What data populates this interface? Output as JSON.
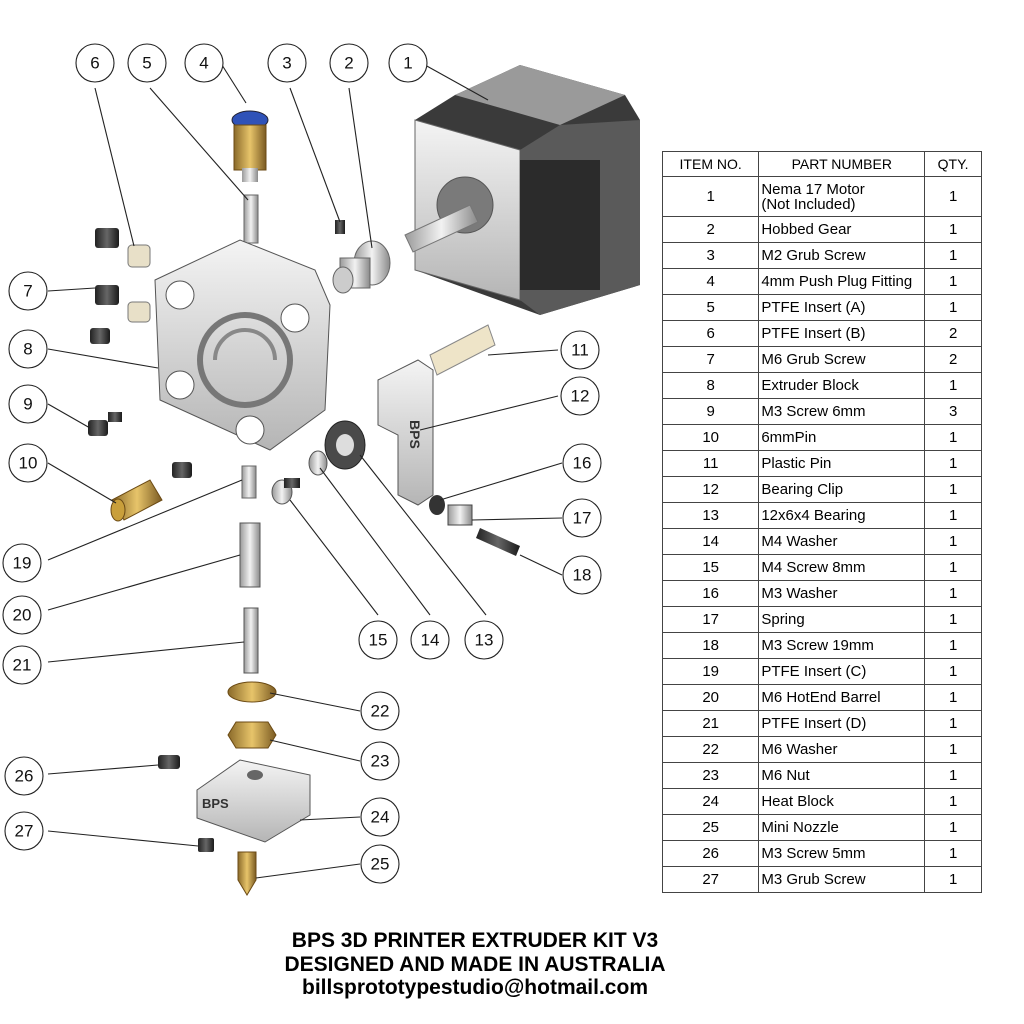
{
  "table": {
    "headers": [
      "ITEM NO.",
      "PART NUMBER",
      "QTY."
    ],
    "rows": [
      {
        "item": "1",
        "part": "Nema 17 Motor\n(Not Included)",
        "qty": "1"
      },
      {
        "item": "2",
        "part": "Hobbed Gear",
        "qty": "1"
      },
      {
        "item": "3",
        "part": "M2 Grub Screw",
        "qty": "1"
      },
      {
        "item": "4",
        "part": "4mm Push Plug Fitting",
        "qty": "1"
      },
      {
        "item": "5",
        "part": "PTFE Insert (A)",
        "qty": "1"
      },
      {
        "item": "6",
        "part": "PTFE Insert (B)",
        "qty": "2"
      },
      {
        "item": "7",
        "part": "M6 Grub Screw",
        "qty": "2"
      },
      {
        "item": "8",
        "part": "Extruder Block",
        "qty": "1"
      },
      {
        "item": "9",
        "part": "M3 Screw 6mm",
        "qty": "3"
      },
      {
        "item": "10",
        "part": "6mmPin",
        "qty": "1"
      },
      {
        "item": "11",
        "part": "Plastic Pin",
        "qty": "1"
      },
      {
        "item": "12",
        "part": "Bearing Clip",
        "qty": "1"
      },
      {
        "item": "13",
        "part": "12x6x4 Bearing",
        "qty": "1"
      },
      {
        "item": "14",
        "part": "M4 Washer",
        "qty": "1"
      },
      {
        "item": "15",
        "part": "M4 Screw 8mm",
        "qty": "1"
      },
      {
        "item": "16",
        "part": "M3 Washer",
        "qty": "1"
      },
      {
        "item": "17",
        "part": "Spring",
        "qty": "1"
      },
      {
        "item": "18",
        "part": "M3 Screw 19mm",
        "qty": "1"
      },
      {
        "item": "19",
        "part": "PTFE Insert (C)",
        "qty": "1"
      },
      {
        "item": "20",
        "part": "M6 HotEnd Barrel",
        "qty": "1"
      },
      {
        "item": "21",
        "part": "PTFE Insert (D)",
        "qty": "1"
      },
      {
        "item": "22",
        "part": "M6 Washer",
        "qty": "1"
      },
      {
        "item": "23",
        "part": "M6 Nut",
        "qty": "1"
      },
      {
        "item": "24",
        "part": "Heat Block",
        "qty": "1"
      },
      {
        "item": "25",
        "part": "Mini Nozzle",
        "qty": "1"
      },
      {
        "item": "26",
        "part": "M3 Screw 5mm",
        "qty": "1"
      },
      {
        "item": "27",
        "part": "M3 Grub Screw",
        "qty": "1"
      }
    ]
  },
  "callouts": [
    "1",
    "2",
    "3",
    "4",
    "5",
    "6",
    "7",
    "8",
    "9",
    "10",
    "11",
    "12",
    "13",
    "14",
    "15",
    "16",
    "17",
    "18",
    "19",
    "20",
    "21",
    "22",
    "23",
    "24",
    "25",
    "26",
    "27"
  ],
  "part_markings": {
    "bearing_clip": "BPS",
    "heat_block": "BPS"
  },
  "footer": {
    "line1": "BPS 3D PRINTER EXTRUDER KIT V3",
    "line2": "DESIGNED AND MADE IN AUSTRALIA",
    "line3": "billsprototypestudio@hotmail.com"
  }
}
